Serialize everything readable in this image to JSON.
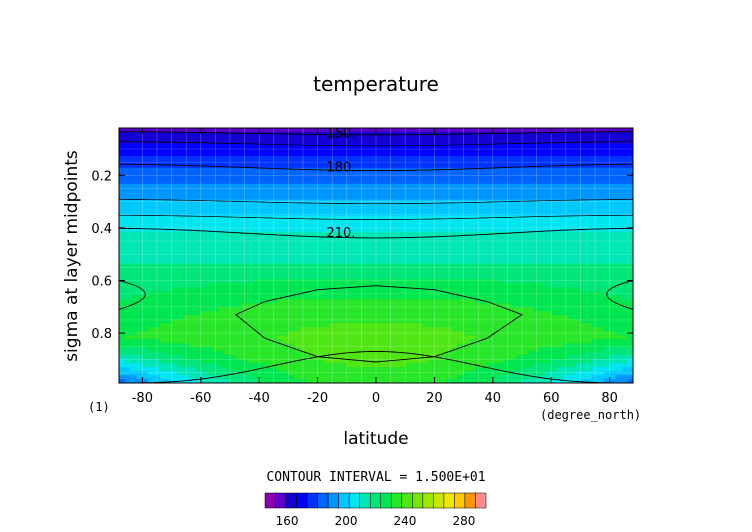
{
  "chart_data": {
    "type": "heatmap",
    "title": "temperature",
    "xlabel": "latitude",
    "ylabel": "sigma at layer midpoints",
    "x_unit_label": "(degree_north)",
    "y_unit_label": "(1)",
    "xlim": [
      -88,
      88
    ],
    "ylim": [
      0.02,
      0.99
    ],
    "y_inverted": true,
    "x_ticks": [
      -80,
      -60,
      -40,
      -20,
      0,
      20,
      40,
      60,
      80
    ],
    "y_ticks": [
      0.2,
      0.4,
      0.6,
      0.8
    ],
    "y_tick_labels": [
      "0.2",
      "0.4",
      "0.6",
      "0.8"
    ],
    "grid": true,
    "contour_lines": [
      {
        "label": "150.",
        "sigma": 0.04
      },
      {
        "label": "180.",
        "sigma": 0.17
      },
      {
        "label": "210.",
        "sigma": 0.42
      }
    ],
    "contour_interval_text": "CONTOUR INTERVAL = 1.500E+01",
    "colorbar": {
      "min": 145,
      "max": 295,
      "step": 7.5,
      "tick_values": [
        160,
        200,
        240,
        280
      ],
      "tick_labels": [
        "160",
        "200",
        "240",
        "280"
      ],
      "colors": [
        "#8a00b0",
        "#5a00c8",
        "#1400d2",
        "#0000ff",
        "#0032ff",
        "#0064ff",
        "#0096ff",
        "#00c8ff",
        "#00e6f0",
        "#00e6b4",
        "#00e678",
        "#00e650",
        "#28e628",
        "#50e614",
        "#78e600",
        "#a0e600",
        "#c8e600",
        "#f0e600",
        "#ffc800",
        "#ff9600",
        "#ff8c8c"
      ]
    }
  }
}
